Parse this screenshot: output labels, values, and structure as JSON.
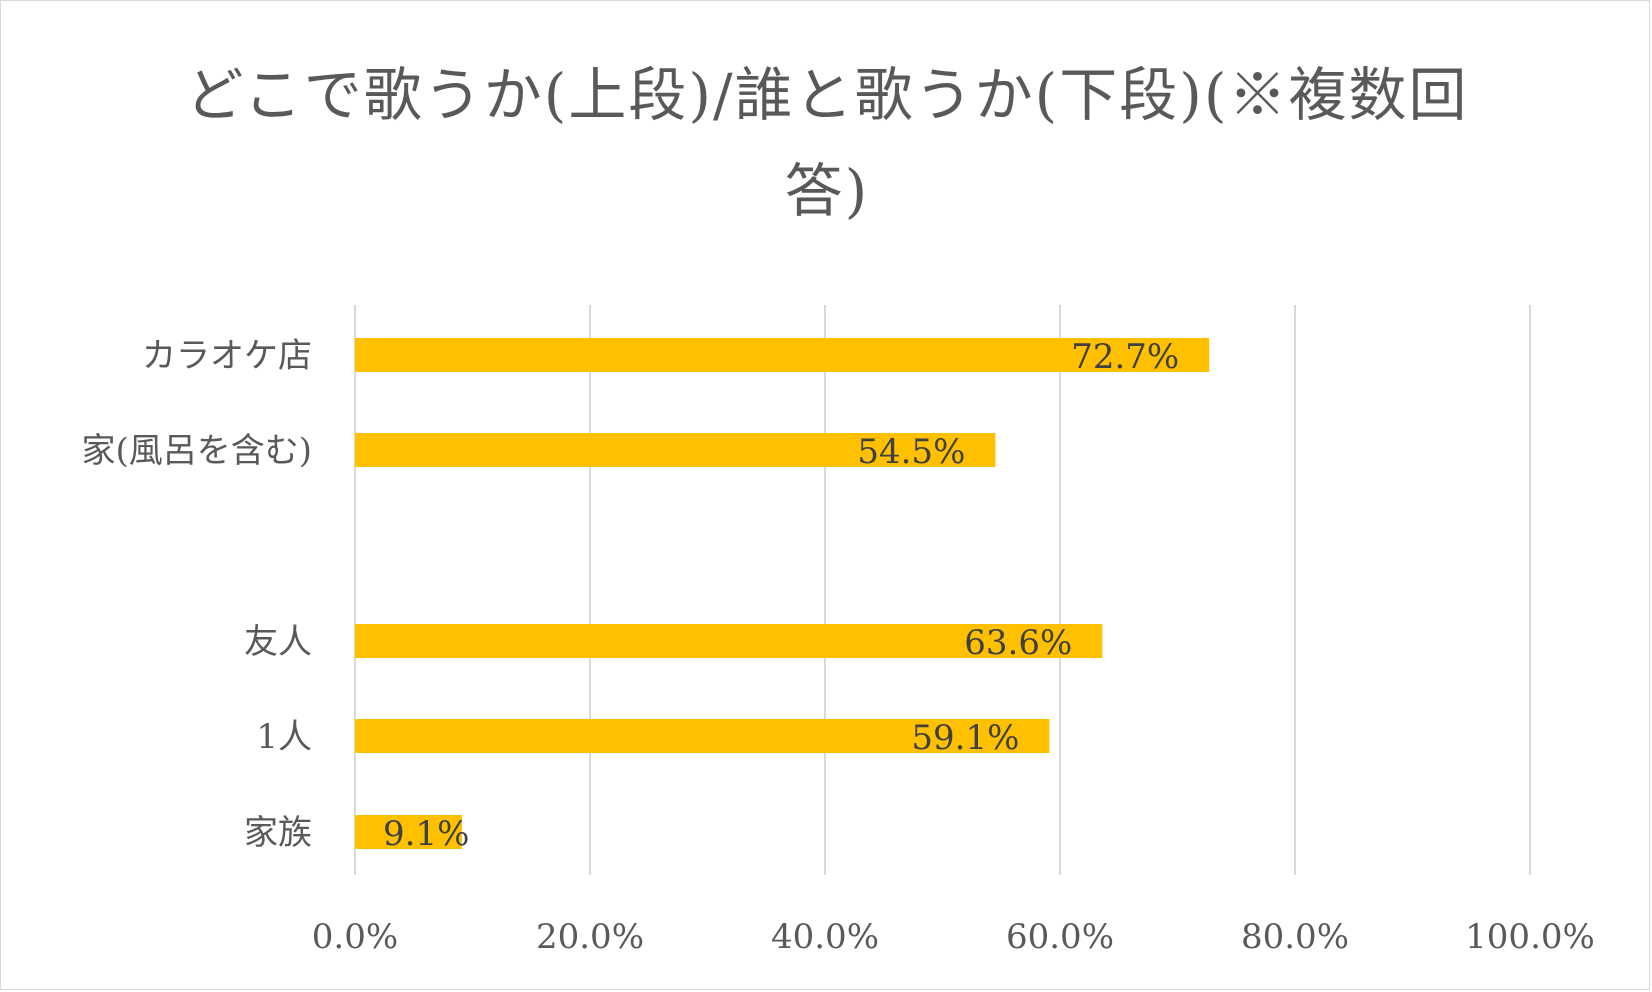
{
  "chart_data": {
    "type": "bar",
    "orientation": "horizontal",
    "title": "どこで歌うか(上段)/誰と歌うか(下段)(※複数回答)",
    "categories": [
      "カラオケ店",
      "家(風呂を含む)",
      "",
      "友人",
      "1人",
      "家族"
    ],
    "values": [
      72.7,
      54.5,
      null,
      63.6,
      59.1,
      9.1
    ],
    "data_labels": [
      "72.7%",
      "54.5%",
      "",
      "63.6%",
      "59.1%",
      "9.1%"
    ],
    "x_ticks": [
      "0.0%",
      "20.0%",
      "40.0%",
      "60.0%",
      "80.0%",
      "100.0%"
    ],
    "xlim": [
      0,
      100
    ],
    "xlabel": "",
    "ylabel": "",
    "grid": true,
    "bar_color": "#FFC000",
    "grid_color": "#d9d9d9",
    "text_color": "#595959"
  }
}
